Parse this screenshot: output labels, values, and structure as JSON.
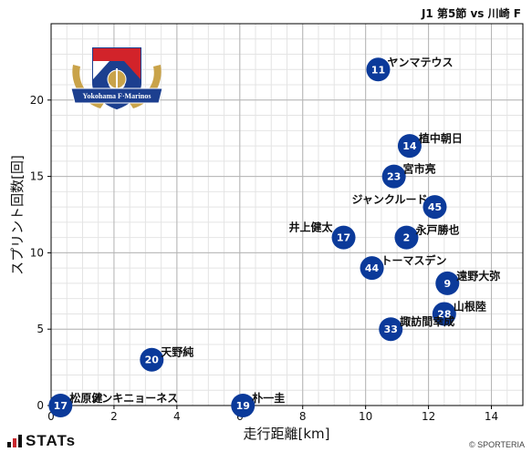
{
  "header": {
    "title": "J1 第5節 vs 川崎 F"
  },
  "logo": {
    "text": "Yokohama F·Marinos"
  },
  "brand": {
    "name": "STATs",
    "credit": "© SPORTERIA"
  },
  "colors": {
    "marker": "#0b3a9a",
    "marker_text": "#ffffff",
    "grid_major": "#b4b4b4",
    "grid_minor": "#e4e4e4"
  },
  "chart_data": {
    "type": "scatter",
    "title": "",
    "xlabel": "走行距離[km]",
    "ylabel": "スプリント回数[回]",
    "xlim": [
      0,
      15
    ],
    "ylim": [
      0,
      25
    ],
    "xticks": [
      0,
      2,
      4,
      6,
      8,
      10,
      12,
      14
    ],
    "yticks": [
      0,
      5,
      10,
      15,
      20
    ],
    "grid": true,
    "points": [
      {
        "number": "11",
        "name": "ヤンマテウス",
        "x": 10.4,
        "y": 22
      },
      {
        "number": "14",
        "name": "植中朝日",
        "x": 11.4,
        "y": 17
      },
      {
        "number": "23",
        "name": "宮市亮",
        "x": 10.9,
        "y": 15
      },
      {
        "number": "45",
        "name": "ジャンクルード",
        "x": 12.2,
        "y": 13
      },
      {
        "number": "17",
        "name": "井上健太",
        "x": 9.3,
        "y": 11
      },
      {
        "number": "2",
        "name": "永戸勝也",
        "x": 11.3,
        "y": 11
      },
      {
        "number": "44",
        "name": "トーマスデン",
        "x": 10.2,
        "y": 9
      },
      {
        "number": "9",
        "name": "遠野大弥",
        "x": 12.6,
        "y": 8
      },
      {
        "number": "28",
        "name": "山根陸",
        "x": 12.5,
        "y": 6
      },
      {
        "number": "33",
        "name": "諏訪間幸成",
        "x": 10.8,
        "y": 5
      },
      {
        "number": "20",
        "name": "天野純",
        "x": 3.2,
        "y": 3
      },
      {
        "number": "19",
        "name": "朴一圭",
        "x": 6.1,
        "y": 0
      },
      {
        "number": "17",
        "name": "松原健",
        "x": 0.3,
        "y": 0
      },
      {
        "number": "",
        "name": "ノンキニョーネス",
        "x": 0.5,
        "y": 0
      }
    ]
  }
}
